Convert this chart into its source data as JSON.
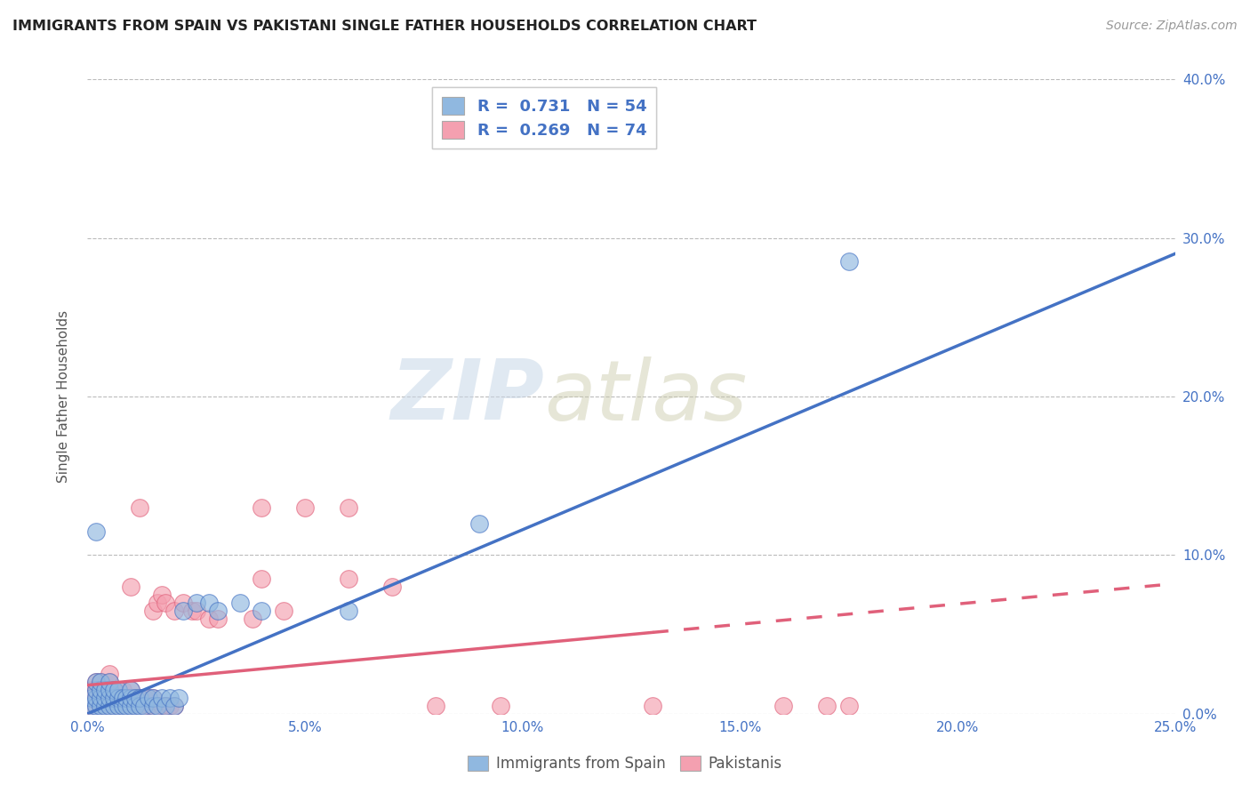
{
  "title": "IMMIGRANTS FROM SPAIN VS PAKISTANI SINGLE FATHER HOUSEHOLDS CORRELATION CHART",
  "source": "Source: ZipAtlas.com",
  "ylabel": "Single Father Households",
  "xlim": [
    0.0,
    0.25
  ],
  "ylim": [
    0.0,
    0.4
  ],
  "xticks": [
    0.0,
    0.05,
    0.1,
    0.15,
    0.2,
    0.25
  ],
  "yticks": [
    0.0,
    0.1,
    0.2,
    0.3,
    0.4
  ],
  "xtick_labels": [
    "0.0%",
    "5.0%",
    "10.0%",
    "15.0%",
    "20.0%",
    "25.0%"
  ],
  "ytick_labels_right": [
    "0.0%",
    "10.0%",
    "20.0%",
    "30.0%",
    "40.0%"
  ],
  "legend_label1": "Immigrants from Spain",
  "legend_label2": "Pakistanis",
  "blue_color": "#90B8E0",
  "pink_color": "#F4A0B0",
  "blue_line_color": "#4472C4",
  "pink_line_color": "#E0607A",
  "watermark_zip": "ZIP",
  "watermark_atlas": "atlas",
  "blue_line_x": [
    0.0,
    0.25
  ],
  "blue_line_y": [
    0.0,
    0.29
  ],
  "pink_line_x": [
    0.0,
    0.25
  ],
  "pink_line_y": [
    0.018,
    0.082
  ],
  "pink_dash_split": 0.13,
  "blue_scatter_x": [
    0.001,
    0.001,
    0.002,
    0.002,
    0.002,
    0.002,
    0.003,
    0.003,
    0.003,
    0.003,
    0.004,
    0.004,
    0.004,
    0.005,
    0.005,
    0.005,
    0.005,
    0.006,
    0.006,
    0.006,
    0.007,
    0.007,
    0.007,
    0.008,
    0.008,
    0.009,
    0.009,
    0.01,
    0.01,
    0.01,
    0.011,
    0.011,
    0.012,
    0.012,
    0.013,
    0.014,
    0.015,
    0.015,
    0.016,
    0.017,
    0.018,
    0.019,
    0.02,
    0.021,
    0.022,
    0.025,
    0.028,
    0.03,
    0.035,
    0.04,
    0.06,
    0.09,
    0.002,
    0.175
  ],
  "blue_scatter_y": [
    0.005,
    0.01,
    0.005,
    0.01,
    0.015,
    0.02,
    0.005,
    0.01,
    0.015,
    0.02,
    0.005,
    0.01,
    0.015,
    0.005,
    0.01,
    0.015,
    0.02,
    0.005,
    0.01,
    0.015,
    0.005,
    0.01,
    0.015,
    0.005,
    0.01,
    0.005,
    0.01,
    0.005,
    0.01,
    0.015,
    0.005,
    0.01,
    0.005,
    0.01,
    0.005,
    0.01,
    0.005,
    0.01,
    0.005,
    0.01,
    0.005,
    0.01,
    0.005,
    0.01,
    0.065,
    0.07,
    0.07,
    0.065,
    0.07,
    0.065,
    0.065,
    0.12,
    0.115,
    0.285
  ],
  "pink_scatter_x": [
    0.001,
    0.001,
    0.001,
    0.002,
    0.002,
    0.002,
    0.002,
    0.003,
    0.003,
    0.003,
    0.003,
    0.004,
    0.004,
    0.004,
    0.005,
    0.005,
    0.005,
    0.005,
    0.005,
    0.006,
    0.006,
    0.006,
    0.007,
    0.007,
    0.007,
    0.008,
    0.008,
    0.008,
    0.009,
    0.009,
    0.01,
    0.01,
    0.01,
    0.011,
    0.011,
    0.012,
    0.012,
    0.013,
    0.013,
    0.014,
    0.014,
    0.015,
    0.015,
    0.015,
    0.016,
    0.016,
    0.017,
    0.017,
    0.018,
    0.018,
    0.019,
    0.02,
    0.02,
    0.022,
    0.024,
    0.025,
    0.028,
    0.03,
    0.038,
    0.045,
    0.06,
    0.07,
    0.08,
    0.095,
    0.13,
    0.16,
    0.17,
    0.175,
    0.06,
    0.04,
    0.04,
    0.05,
    0.01,
    0.012
  ],
  "pink_scatter_y": [
    0.005,
    0.01,
    0.015,
    0.005,
    0.01,
    0.015,
    0.02,
    0.005,
    0.01,
    0.015,
    0.02,
    0.005,
    0.01,
    0.015,
    0.005,
    0.01,
    0.015,
    0.02,
    0.025,
    0.005,
    0.01,
    0.015,
    0.005,
    0.01,
    0.015,
    0.005,
    0.01,
    0.015,
    0.005,
    0.01,
    0.005,
    0.01,
    0.015,
    0.005,
    0.01,
    0.005,
    0.01,
    0.005,
    0.01,
    0.005,
    0.01,
    0.005,
    0.01,
    0.065,
    0.005,
    0.07,
    0.005,
    0.075,
    0.005,
    0.07,
    0.005,
    0.005,
    0.065,
    0.07,
    0.065,
    0.065,
    0.06,
    0.06,
    0.06,
    0.065,
    0.085,
    0.08,
    0.005,
    0.005,
    0.005,
    0.005,
    0.005,
    0.005,
    0.13,
    0.13,
    0.085,
    0.13,
    0.08,
    0.13
  ]
}
